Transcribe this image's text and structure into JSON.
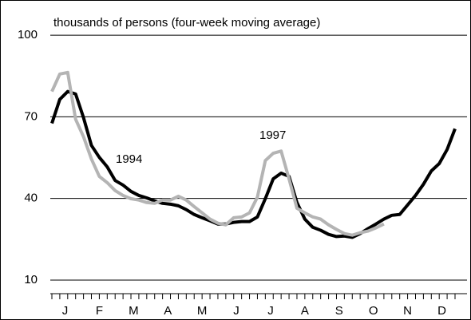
{
  "chart_data": {
    "type": "line",
    "title": "thousands of persons (four-week moving average)",
    "categories": [
      "J",
      "F",
      "M",
      "A",
      "M",
      "J",
      "J",
      "A",
      "S",
      "O",
      "N",
      "D"
    ],
    "x": [
      1,
      2,
      3,
      4,
      5,
      6,
      7,
      8,
      9,
      10,
      11,
      12,
      13,
      14,
      15,
      16,
      17,
      18,
      19,
      20,
      21,
      22,
      23,
      24,
      25,
      26,
      27,
      28,
      29,
      30,
      31,
      32,
      33,
      34,
      35,
      36,
      37,
      38,
      39,
      40,
      41,
      42,
      43,
      44,
      45,
      46,
      47,
      48,
      49,
      50,
      51,
      52
    ],
    "series": [
      {
        "name": "1994",
        "color": "#000000",
        "values": [
          67.6,
          76.4,
          79.3,
          78.4,
          69.7,
          59.5,
          55.1,
          51.6,
          46.6,
          44.9,
          42.6,
          41.1,
          40.2,
          39.1,
          38.2,
          37.9,
          37.3,
          35.9,
          34.1,
          32.9,
          31.8,
          30.6,
          30.6,
          31.2,
          31.5,
          31.5,
          33.2,
          39.9,
          47.2,
          49.3,
          48.1,
          38.5,
          32.4,
          29.4,
          28.3,
          26.8,
          26.0,
          26.2,
          25.7,
          27.1,
          28.9,
          30.6,
          32.4,
          33.8,
          34.1,
          37.6,
          41.1,
          45.2,
          50.1,
          52.8,
          58.0,
          65.6
        ]
      },
      {
        "name": "1997",
        "color": "#b4b4b4",
        "values": [
          79.3,
          85.7,
          86.3,
          69.1,
          62.7,
          54.5,
          48.1,
          45.8,
          42.9,
          41.1,
          39.9,
          39.4,
          38.5,
          38.2,
          39.4,
          39.4,
          40.8,
          39.4,
          37.0,
          34.7,
          32.4,
          30.9,
          30.3,
          32.9,
          33.2,
          34.7,
          40.5,
          53.9,
          56.6,
          57.4,
          47.2,
          36.4,
          34.7,
          33.2,
          32.4,
          30.3,
          28.6,
          27.1,
          26.5,
          27.4,
          28.0,
          29.2,
          30.6,
          null,
          null,
          null,
          null,
          null,
          null,
          null,
          null,
          null
        ]
      }
    ],
    "ylim": [
      5,
      110
    ],
    "yticks": [
      10,
      40,
      70,
      100
    ],
    "grid": true
  }
}
